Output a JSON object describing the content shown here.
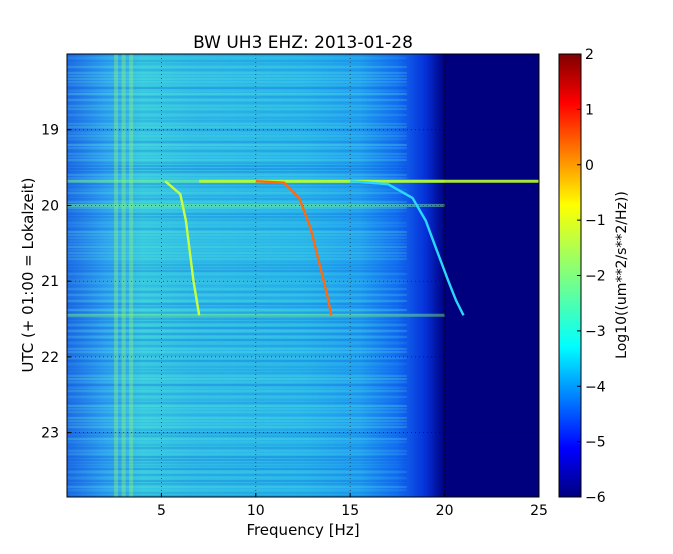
{
  "chart_data": {
    "type": "heatmap",
    "title": "BW UH3 EHZ: 2013-01-28",
    "xlabel": "Frequency [Hz]",
    "ylabel": "UTC (+ 01:00 = Lokalzeit)",
    "xlim": [
      0,
      25
    ],
    "ylim": [
      23.85,
      18.0
    ],
    "x_ticks": [
      5,
      10,
      15,
      20,
      25
    ],
    "x_tick_labels": [
      "5",
      "10",
      "15",
      "20",
      "25"
    ],
    "y_ticks": [
      19,
      20,
      21,
      22,
      23
    ],
    "y_tick_labels": [
      "19",
      "20",
      "21",
      "22",
      "23"
    ],
    "grid": true,
    "colorbar": {
      "label": "Log10((um**2/s**2/Hz))",
      "range": [
        -6,
        2
      ],
      "ticks": [
        2,
        1,
        0,
        -1,
        -2,
        -3,
        -4,
        -5,
        -6
      ],
      "tick_labels": [
        "2",
        "1",
        "0",
        "−1",
        "−2",
        "−3",
        "−4",
        "−5",
        "−6"
      ],
      "colormap": "jet"
    },
    "series": [
      {
        "values": [
          [
            5.2,
            19.68
          ],
          [
            6.0,
            19.85
          ],
          [
            6.3,
            20.2
          ],
          [
            6.5,
            20.6
          ],
          [
            6.7,
            21.0
          ],
          [
            7.0,
            21.45
          ]
        ]
      },
      {
        "values": [
          [
            10.0,
            19.68
          ],
          [
            11.5,
            19.7
          ],
          [
            12.3,
            19.9
          ],
          [
            12.9,
            20.3
          ],
          [
            13.4,
            20.8
          ],
          [
            13.8,
            21.2
          ],
          [
            14.0,
            21.45
          ]
        ]
      },
      {
        "values": [
          [
            15.0,
            19.68
          ],
          [
            17.0,
            19.72
          ],
          [
            18.3,
            19.9
          ],
          [
            19.0,
            20.2
          ],
          [
            19.6,
            20.6
          ],
          [
            20.2,
            21.0
          ],
          [
            20.6,
            21.25
          ],
          [
            21.0,
            21.45
          ]
        ]
      }
    ],
    "horizontal_line": {
      "x": [
        7,
        25
      ],
      "y": 19.68
    }
  }
}
